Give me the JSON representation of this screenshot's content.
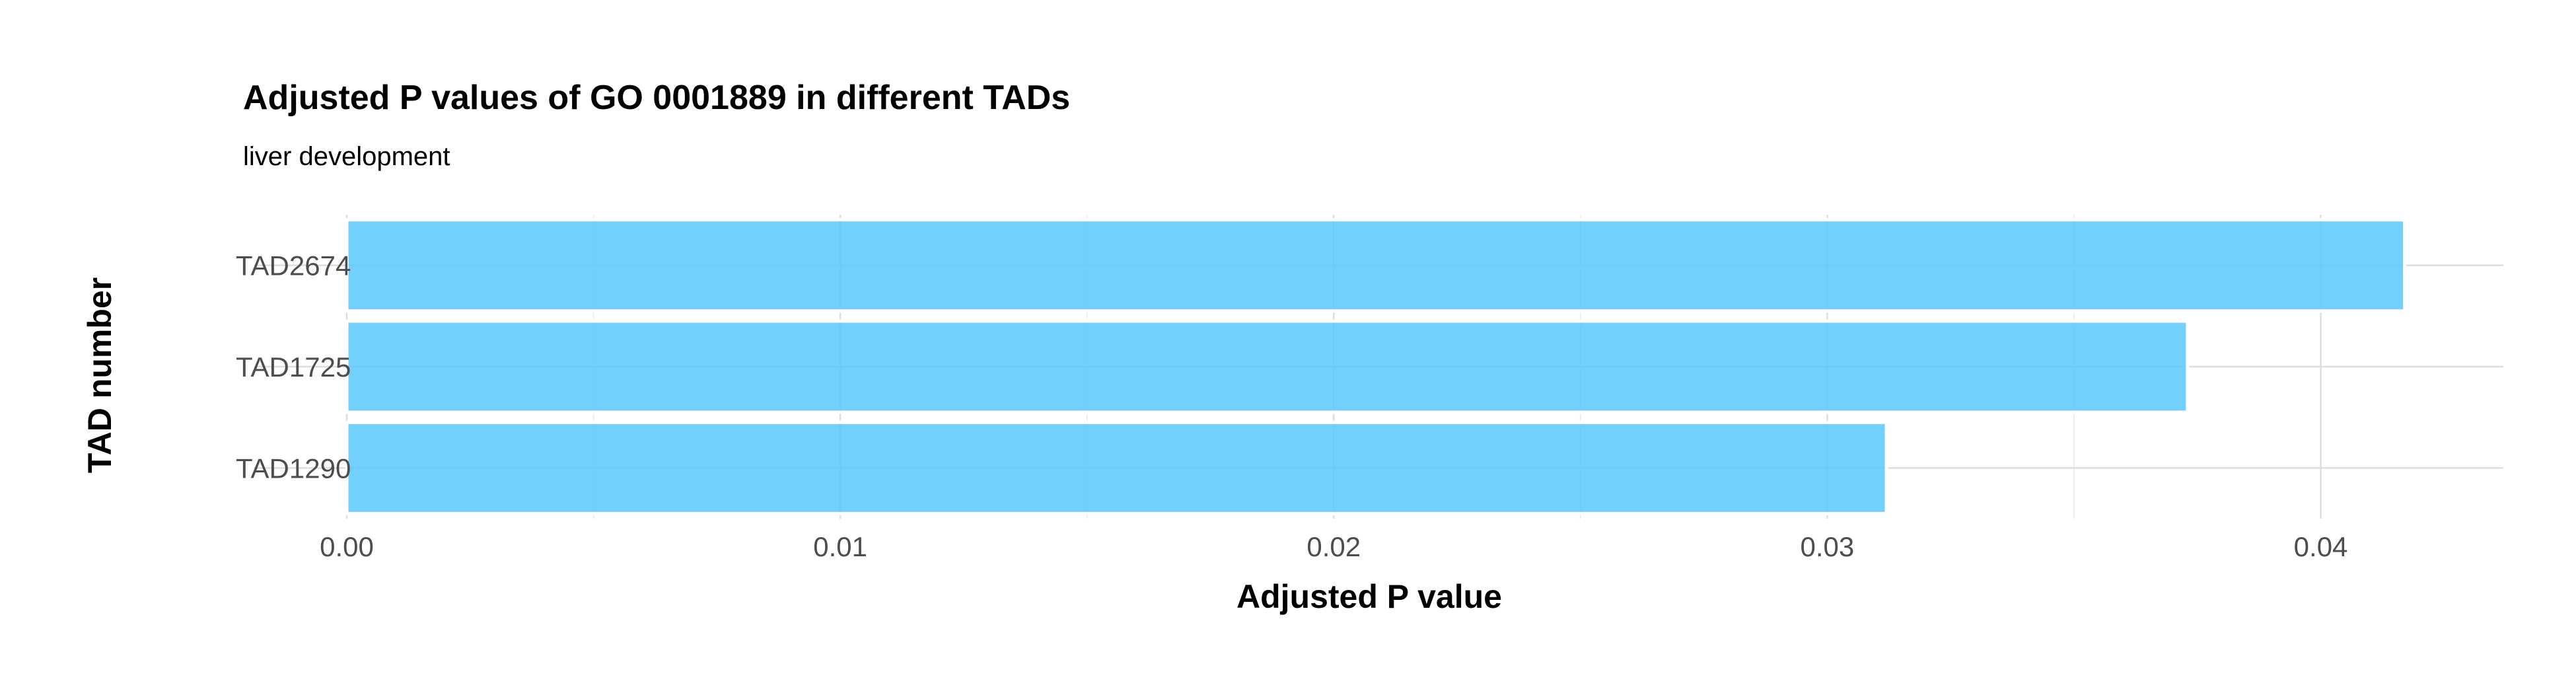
{
  "chart_data": {
    "type": "bar",
    "orientation": "horizontal",
    "title": "Adjusted P values of GO 0001889 in different TADs",
    "subtitle": "liver development",
    "xlabel": "Adjusted P value",
    "ylabel": "TAD number",
    "categories": [
      "TAD2674",
      "TAD1725",
      "TAD1290"
    ],
    "values": [
      0.0417,
      0.0373,
      0.0312
    ],
    "xlim": [
      0.0,
      0.0437
    ],
    "xticks": [
      0.0,
      0.01,
      0.02,
      0.03,
      0.04
    ],
    "xtick_labels": [
      "0.00",
      "0.01",
      "0.02",
      "0.03",
      "0.04"
    ],
    "grid": true,
    "legend": "none",
    "colors": {
      "bar_fill": "#5bc8fc",
      "bar_stroke": "#ffffff",
      "grid_major": "#dedede",
      "grid_minor": "#ececec",
      "tick_text": "#4d4d4d"
    }
  }
}
